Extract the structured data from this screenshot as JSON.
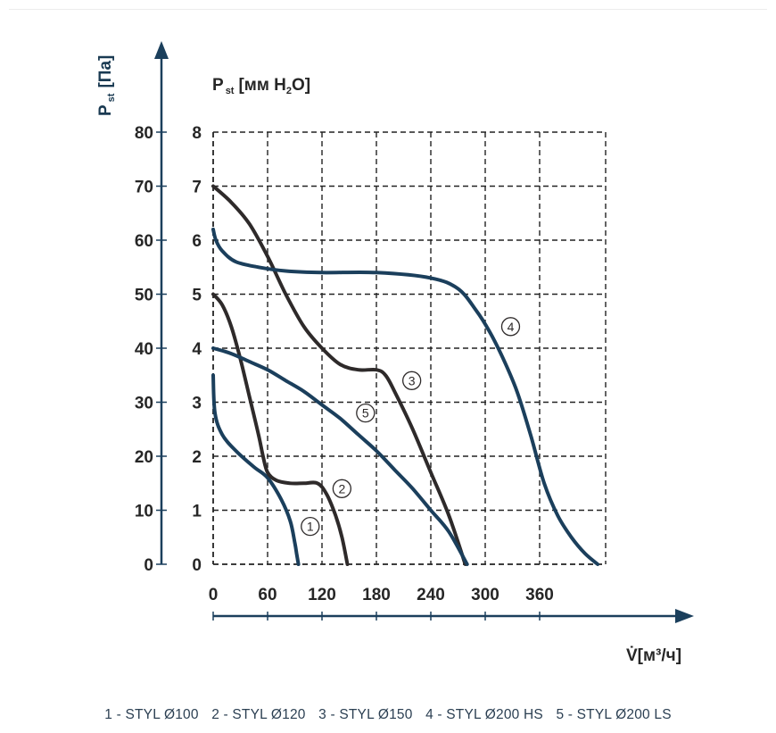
{
  "chart_data": {
    "type": "line",
    "title": "",
    "y_pa_label": "P",
    "y_pa_sub": "st",
    "y_pa_unit": "[Па]",
    "y_mm_label": "P",
    "y_mm_sub": "st",
    "y_mm_unit_pre": "[мм H",
    "y_mm_unit_sub": "2",
    "y_mm_unit_post": "O]",
    "x_label": "V̇[м³/ч]",
    "x_ticks": [
      "0",
      "60",
      "120",
      "180",
      "240",
      "300",
      "360"
    ],
    "y_pa_ticks": [
      "0",
      "10",
      "20",
      "30",
      "40",
      "50",
      "60",
      "70",
      "80"
    ],
    "y_mm_ticks": [
      "0",
      "1",
      "2",
      "3",
      "4",
      "5",
      "6",
      "7",
      "8"
    ],
    "xlim": [
      0,
      420
    ],
    "ylim_pa": [
      0,
      80
    ],
    "ylim_mm": [
      0,
      8
    ],
    "grid": true,
    "series": [
      {
        "name": "1",
        "color": "#1b3f5c",
        "x": [
          0,
          2,
          10,
          25,
          45,
          60,
          75,
          85,
          90,
          92,
          94
        ],
        "y": [
          35,
          28,
          24,
          21,
          18,
          16,
          12,
          8,
          4,
          2,
          0
        ]
      },
      {
        "name": "2",
        "color": "#2e2a2a",
        "x": [
          0,
          10,
          20,
          30,
          40,
          50,
          55,
          60,
          70,
          85,
          100,
          115,
          125,
          135,
          142,
          148
        ],
        "y": [
          50,
          48,
          44,
          38,
          31,
          24,
          20,
          17,
          15.5,
          15,
          15,
          15,
          13,
          9,
          5,
          0
        ]
      },
      {
        "name": "3",
        "color": "#2e2a2a",
        "x": [
          0,
          20,
          40,
          60,
          80,
          100,
          120,
          140,
          160,
          180,
          190,
          200,
          220,
          240,
          260,
          278
        ],
        "y": [
          70,
          67,
          63,
          57,
          50,
          44,
          40,
          37,
          36,
          36,
          35,
          32,
          25,
          17,
          9,
          0
        ]
      },
      {
        "name": "4",
        "color": "#1b3f5c",
        "x": [
          0,
          3,
          10,
          25,
          50,
          80,
          120,
          180,
          240,
          270,
          290,
          305,
          320,
          335,
          350,
          365,
          380,
          395,
          410,
          424
        ],
        "y": [
          62,
          60,
          58,
          56,
          55,
          54.3,
          54,
          54,
          53,
          51,
          47,
          43,
          38,
          32,
          24,
          15,
          9,
          5,
          2,
          0
        ]
      },
      {
        "name": "5",
        "color": "#1b3f5c",
        "x": [
          0,
          20,
          40,
          60,
          80,
          100,
          120,
          140,
          160,
          180,
          200,
          220,
          240,
          260,
          280
        ],
        "y": [
          40,
          39,
          37.5,
          36,
          34,
          32,
          29.5,
          27,
          24,
          21,
          17.5,
          14,
          10,
          6,
          0
        ]
      }
    ],
    "curve_labels": [
      {
        "text": "1",
        "x": 107,
        "y": 7
      },
      {
        "text": "2",
        "x": 142,
        "y": 14
      },
      {
        "text": "3",
        "x": 219,
        "y": 34
      },
      {
        "text": "4",
        "x": 328,
        "y": 44
      },
      {
        "text": "5",
        "x": 168,
        "y": 28
      }
    ],
    "legend": [
      "1 - STYL Ø100",
      "2 - STYL Ø120",
      "3 - STYL Ø150",
      "4 - STYL Ø200 HS",
      "5 - STYL Ø200 LS"
    ]
  },
  "colors": {
    "axis": "#1b3f5c",
    "grid": "#222222",
    "text": "#262626",
    "legend_text": "#2b3f52"
  }
}
